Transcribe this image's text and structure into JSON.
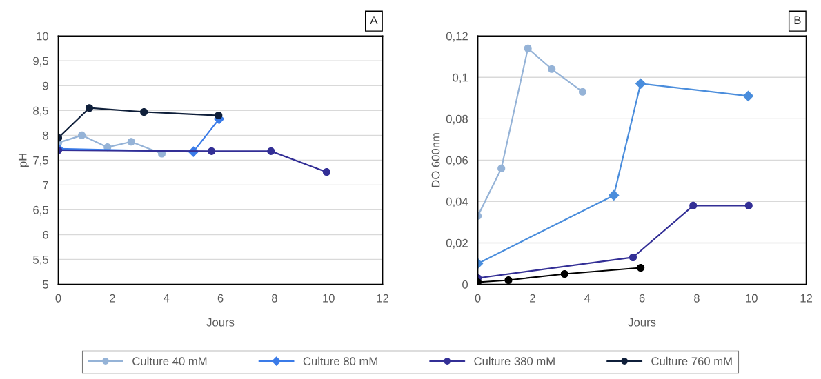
{
  "chart_data": [
    {
      "type": "line",
      "xlabel": "Jours",
      "ylabel": "pH",
      "annotations": [
        "A"
      ],
      "xlim": [
        0,
        12
      ],
      "xticks": [
        0,
        2,
        4,
        6,
        8,
        10,
        12
      ],
      "ylim": [
        5,
        10
      ],
      "yticks": [
        5,
        {
          "value": 5.5,
          "label": "5,5"
        },
        6,
        {
          "value": 6.5,
          "label": "6,5"
        },
        7,
        {
          "value": 7.5,
          "label": "7,5"
        },
        8,
        {
          "value": 8.5,
          "label": "8,5"
        },
        9,
        {
          "value": 9.5,
          "label": "9,5"
        },
        10
      ],
      "grid": "y",
      "legend": "bottom",
      "series": [
        {
          "name": "Culture 40 mM",
          "color": "#95b3d7",
          "marker": "circle",
          "x": [
            0,
            0.87,
            1.82,
            2.7,
            3.83
          ],
          "values": [
            7.85,
            8.0,
            7.76,
            7.87,
            7.63
          ]
        },
        {
          "name": "Culture 80 mM",
          "color": "#3a7be8",
          "marker": "diamond",
          "x": [
            0,
            5,
            5.95
          ],
          "values": [
            7.73,
            7.67,
            8.33
          ]
        },
        {
          "name": "Culture 380 mM",
          "color": "#332f96",
          "marker": "circle",
          "x": [
            0,
            5.67,
            7.87,
            9.93
          ],
          "values": [
            7.7,
            7.68,
            7.68,
            7.26
          ]
        },
        {
          "name": "Culture 760 mM",
          "color": "#0f1f3a",
          "marker": "circle",
          "x": [
            0,
            1.15,
            3.17,
            5.93
          ],
          "values": [
            7.95,
            8.55,
            8.47,
            8.4
          ]
        }
      ]
    },
    {
      "type": "line",
      "xlabel": "Jours",
      "ylabel": "DO 600nm",
      "annotations": [
        "B"
      ],
      "xlim": [
        0,
        12
      ],
      "xticks": [
        0,
        2,
        4,
        6,
        8,
        10,
        12
      ],
      "ylim": [
        0,
        0.12
      ],
      "yticks": [
        0,
        {
          "value": 0.02,
          "label": "0,02"
        },
        {
          "value": 0.04,
          "label": "0,04"
        },
        {
          "value": 0.06,
          "label": "0,06"
        },
        {
          "value": 0.08,
          "label": "0,08"
        },
        {
          "value": 0.1,
          "label": "0,1"
        },
        {
          "value": 0.12,
          "label": "0,12"
        }
      ],
      "grid": "y",
      "series": [
        {
          "color": "#95b3d7",
          "marker": "circle",
          "x": [
            0,
            0.86,
            1.83,
            2.7,
            3.83
          ],
          "values": [
            0.033,
            0.056,
            0.114,
            0.104,
            0.093
          ]
        },
        {
          "color": "#4a8ddc",
          "marker": "diamond",
          "x": [
            0,
            4.97,
            5.95,
            9.88
          ],
          "values": [
            0.01,
            0.043,
            0.097,
            0.091
          ]
        },
        {
          "color": "#332f96",
          "marker": "circle",
          "x": [
            0,
            5.67,
            7.87,
            9.9
          ],
          "values": [
            0.003,
            0.013,
            0.038,
            0.038
          ]
        },
        {
          "color": "#000000",
          "marker": "circle",
          "x": [
            0,
            1.12,
            3.17,
            5.95
          ],
          "values": [
            0.001,
            0.002,
            0.005,
            0.008
          ]
        }
      ]
    }
  ]
}
